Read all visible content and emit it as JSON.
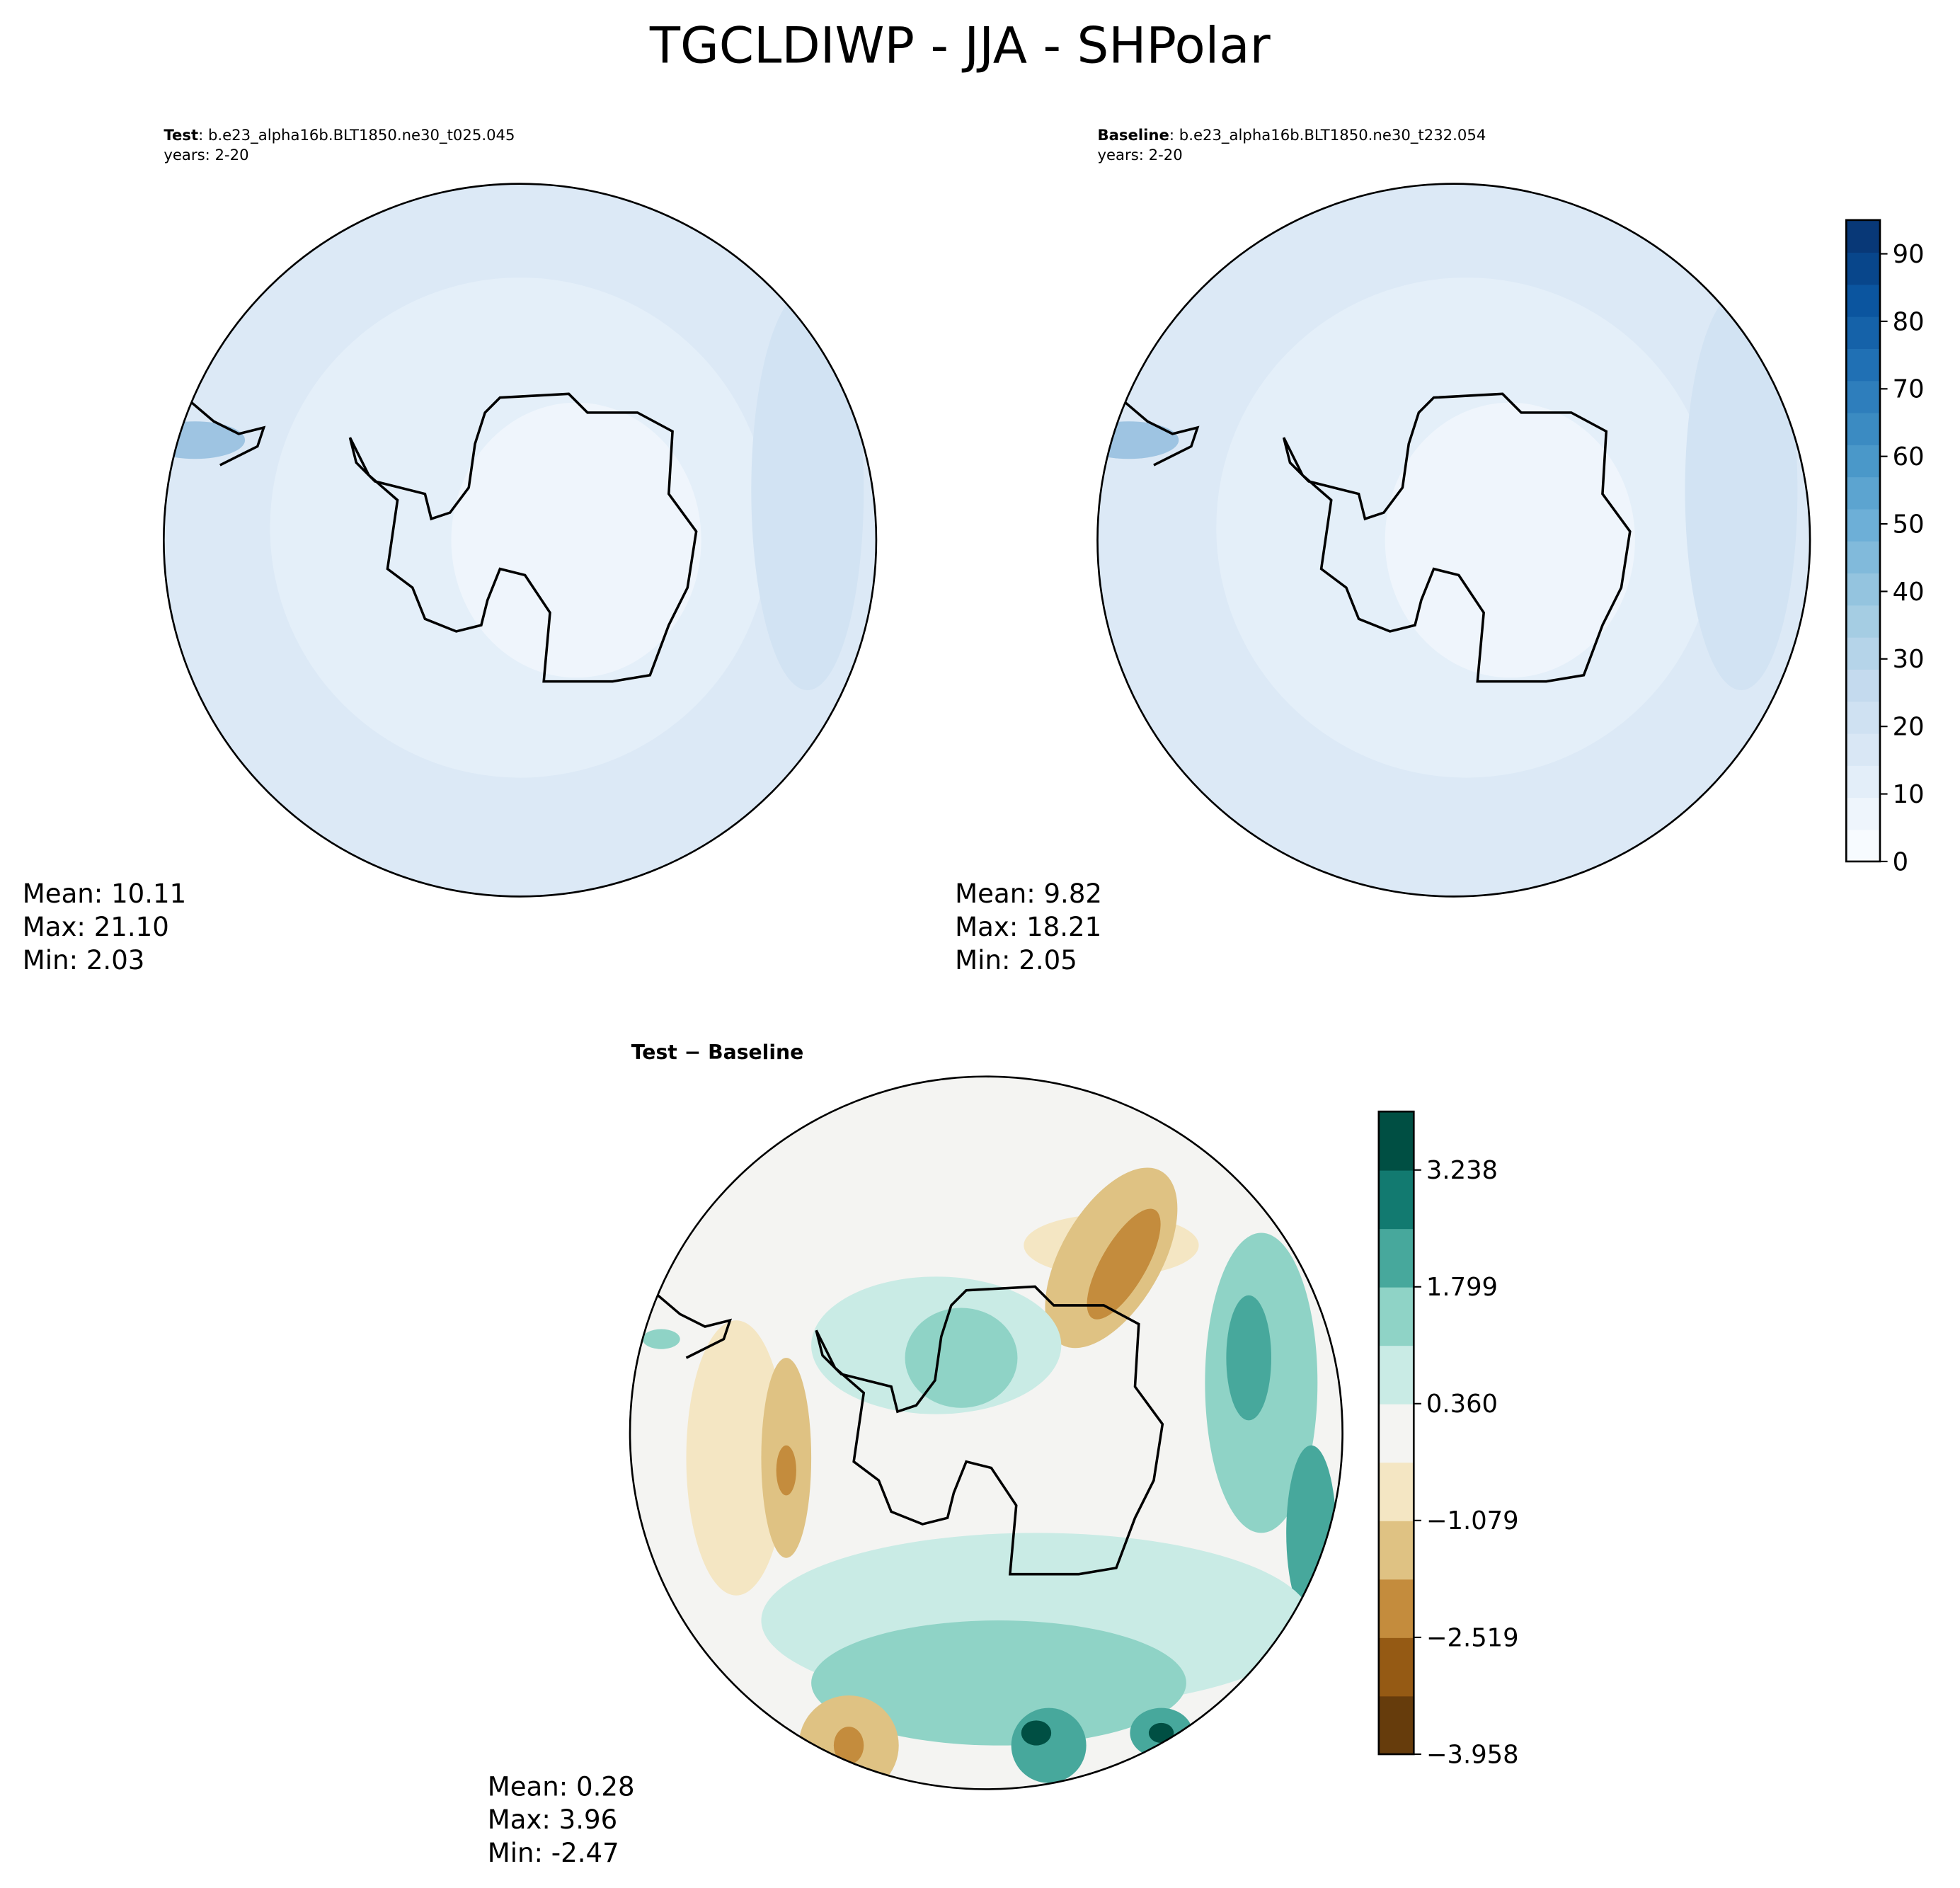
{
  "title": "TGCLDIWP - JJA - SHPolar",
  "panels": [
    {
      "name": "Test",
      "case": ": b.e23_alpha16b.BLT1850.ne30_t025.045",
      "years": "years: 2-20",
      "stats": [
        "Mean: 10.11",
        "Max: 21.10",
        "Min:  2.03"
      ]
    },
    {
      "name": "Baseline",
      "case": ": b.e23_alpha16b.BLT1850.ne30_t232.054",
      "years": "years: 2-20",
      "stats": [
        "Mean:  9.82",
        "Max: 18.21",
        "Min:  2.05"
      ]
    },
    {
      "name": "Test − Baseline",
      "stats": [
        "Mean:  0.28",
        "Max:  3.96",
        "Min: -2.47"
      ]
    }
  ],
  "colorbars": [
    {
      "lim": [
        0,
        95
      ],
      "ticks": [
        0,
        10,
        20,
        30,
        40,
        50,
        60,
        70,
        80,
        90
      ]
    },
    {
      "lim": [
        -3.958,
        3.958
      ],
      "ticks": [
        {
          "value": -3.958,
          "label": "−3.958"
        },
        {
          "value": -2.519,
          "label": "−2.519"
        },
        {
          "value": -1.079,
          "label": "−1.079"
        },
        {
          "value": 0.36,
          "label": "0.360"
        },
        {
          "value": 1.799,
          "label": "1.799"
        },
        {
          "value": 3.238,
          "label": "3.238"
        }
      ]
    }
  ]
}
